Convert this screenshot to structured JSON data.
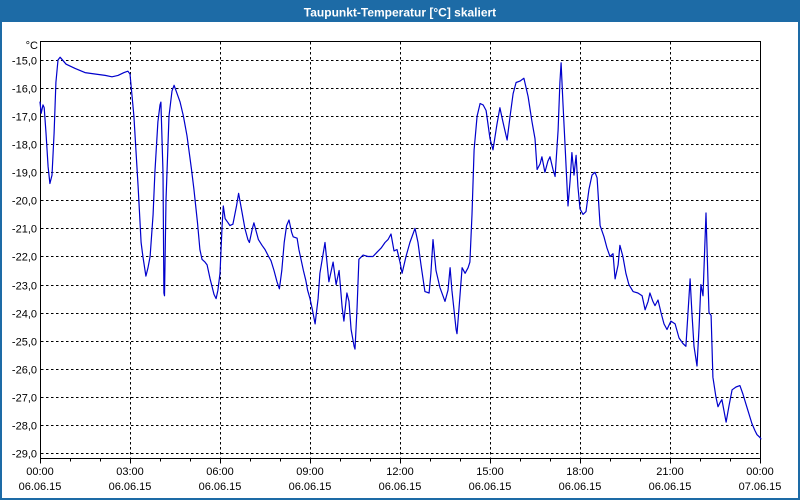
{
  "window": {
    "title": "Taupunkt-Temperatur [°C] skaliert"
  },
  "colors": {
    "titlebar_bg": "#1d6ba6",
    "titlebar_text": "#ffffff",
    "window_border": "#1d6ba6",
    "plot_bg": "#ffffff",
    "plot_border": "#000000",
    "gridline": "#000000",
    "label_text": "#000000",
    "series_line": "#0000cc"
  },
  "chart_data": {
    "type": "line",
    "title": "Taupunkt-Temperatur [°C] skaliert",
    "grid": "dashed",
    "legend": "none",
    "y_axis": {
      "unit_label": "°C",
      "decimal_style": "comma",
      "tick_values": [
        -15,
        -16,
        -17,
        -18,
        -19,
        -20,
        -21,
        -22,
        -23,
        -24,
        -25,
        -26,
        -27,
        -28,
        -29
      ],
      "tick_labels": [
        "-15,0",
        "-16,0",
        "-17,0",
        "-18,0",
        "-19,0",
        "-20,0",
        "-21,0",
        "-22,0",
        "-23,0",
        "-24,0",
        "-25,0",
        "-26,0",
        "-27,0",
        "-28,0",
        "-29,0"
      ],
      "min": -29.2,
      "max": -14.3
    },
    "x_axis": {
      "minor_tick_every_hours": 1,
      "major_ticks": [
        {
          "hour": 0,
          "time": "00:00",
          "date": "06.06.15"
        },
        {
          "hour": 3,
          "time": "03:00",
          "date": "06.06.15"
        },
        {
          "hour": 6,
          "time": "06:00",
          "date": "06.06.15"
        },
        {
          "hour": 9,
          "time": "09:00",
          "date": "06.06.15"
        },
        {
          "hour": 12,
          "time": "12:00",
          "date": "06.06.15"
        },
        {
          "hour": 15,
          "time": "15:00",
          "date": "06.06.15"
        },
        {
          "hour": 18,
          "time": "18:00",
          "date": "06.06.15"
        },
        {
          "hour": 21,
          "time": "21:00",
          "date": "06.06.15"
        },
        {
          "hour": 24,
          "time": "00:00",
          "date": "07.06.15"
        }
      ]
    },
    "series": [
      {
        "name": "Taupunkt-Temperatur",
        "color": "#0000cc",
        "x_unit": "hours_since_2015-06-06_00:00",
        "points": [
          [
            0,
            -16.5
          ],
          [
            0.04,
            -16.9
          ],
          [
            0.1,
            -16.6
          ],
          [
            0.14,
            -16.7
          ],
          [
            0.2,
            -17.6
          ],
          [
            0.27,
            -18.8
          ],
          [
            0.33,
            -19.4
          ],
          [
            0.4,
            -19.1
          ],
          [
            0.47,
            -17.6
          ],
          [
            0.53,
            -15.8
          ],
          [
            0.6,
            -15.0
          ],
          [
            0.67,
            -14.9
          ],
          [
            0.87,
            -15.15
          ],
          [
            1.17,
            -15.3
          ],
          [
            1.5,
            -15.45
          ],
          [
            1.83,
            -15.5
          ],
          [
            2.17,
            -15.55
          ],
          [
            2.4,
            -15.6
          ],
          [
            2.6,
            -15.55
          ],
          [
            2.8,
            -15.45
          ],
          [
            2.93,
            -15.4
          ],
          [
            3.0,
            -15.5
          ],
          [
            3.13,
            -17.0
          ],
          [
            3.27,
            -19.5
          ],
          [
            3.37,
            -21.5
          ],
          [
            3.43,
            -22.0
          ],
          [
            3.53,
            -22.7
          ],
          [
            3.6,
            -22.4
          ],
          [
            3.67,
            -22.0
          ],
          [
            3.77,
            -20.5
          ],
          [
            3.83,
            -19.0
          ],
          [
            3.93,
            -17.2
          ],
          [
            4.0,
            -16.6
          ],
          [
            4.03,
            -16.5
          ],
          [
            4.1,
            -19.0
          ],
          [
            4.13,
            -23.3
          ],
          [
            4.15,
            -23.4
          ],
          [
            4.2,
            -20.0
          ],
          [
            4.3,
            -17.0
          ],
          [
            4.4,
            -16.1
          ],
          [
            4.47,
            -15.9
          ],
          [
            4.57,
            -16.2
          ],
          [
            4.67,
            -16.5
          ],
          [
            4.78,
            -17.0
          ],
          [
            4.9,
            -17.7
          ],
          [
            5.0,
            -18.5
          ],
          [
            5.05,
            -18.9
          ],
          [
            5.13,
            -19.6
          ],
          [
            5.25,
            -20.8
          ],
          [
            5.33,
            -21.75
          ],
          [
            5.4,
            -22.1
          ],
          [
            5.5,
            -22.2
          ],
          [
            5.57,
            -22.3
          ],
          [
            5.67,
            -22.8
          ],
          [
            5.8,
            -23.35
          ],
          [
            5.87,
            -23.5
          ],
          [
            5.93,
            -23.2
          ],
          [
            6.0,
            -22.6
          ],
          [
            6.07,
            -20.9
          ],
          [
            6.11,
            -20.2
          ],
          [
            6.17,
            -20.65
          ],
          [
            6.27,
            -20.8
          ],
          [
            6.33,
            -20.9
          ],
          [
            6.43,
            -20.85
          ],
          [
            6.55,
            -20.2
          ],
          [
            6.62,
            -19.75
          ],
          [
            6.73,
            -20.4
          ],
          [
            6.83,
            -21.0
          ],
          [
            6.93,
            -21.4
          ],
          [
            6.98,
            -21.5
          ],
          [
            7.08,
            -21.0
          ],
          [
            7.13,
            -20.8
          ],
          [
            7.28,
            -21.4
          ],
          [
            7.4,
            -21.6
          ],
          [
            7.5,
            -21.75
          ],
          [
            7.62,
            -22.0
          ],
          [
            7.7,
            -22.15
          ],
          [
            7.8,
            -22.5
          ],
          [
            7.9,
            -22.9
          ],
          [
            7.98,
            -23.15
          ],
          [
            8.06,
            -22.5
          ],
          [
            8.14,
            -21.5
          ],
          [
            8.22,
            -20.9
          ],
          [
            8.3,
            -20.7
          ],
          [
            8.39,
            -21.15
          ],
          [
            8.44,
            -21.3
          ],
          [
            8.57,
            -21.35
          ],
          [
            8.63,
            -21.75
          ],
          [
            8.7,
            -22.1
          ],
          [
            8.78,
            -22.5
          ],
          [
            8.86,
            -22.85
          ],
          [
            8.92,
            -23.2
          ],
          [
            9.0,
            -23.5
          ],
          [
            9.08,
            -23.9
          ],
          [
            9.17,
            -24.4
          ],
          [
            9.27,
            -23.5
          ],
          [
            9.33,
            -22.6
          ],
          [
            9.5,
            -21.5
          ],
          [
            9.63,
            -22.9
          ],
          [
            9.77,
            -22.2
          ],
          [
            9.87,
            -23.0
          ],
          [
            9.97,
            -22.5
          ],
          [
            10.07,
            -23.8
          ],
          [
            10.13,
            -24.3
          ],
          [
            10.23,
            -23.3
          ],
          [
            10.3,
            -23.6
          ],
          [
            10.37,
            -24.6
          ],
          [
            10.47,
            -25.2
          ],
          [
            10.5,
            -25.3
          ],
          [
            10.57,
            -23.8
          ],
          [
            10.63,
            -22.1
          ],
          [
            10.77,
            -21.95
          ],
          [
            10.93,
            -22.0
          ],
          [
            11.1,
            -22.0
          ],
          [
            11.23,
            -21.85
          ],
          [
            11.37,
            -21.7
          ],
          [
            11.5,
            -21.5
          ],
          [
            11.6,
            -21.4
          ],
          [
            11.7,
            -21.2
          ],
          [
            11.8,
            -21.8
          ],
          [
            11.9,
            -21.75
          ],
          [
            12.0,
            -22.2
          ],
          [
            12.07,
            -22.6
          ],
          [
            12.2,
            -22.0
          ],
          [
            12.33,
            -21.5
          ],
          [
            12.5,
            -21.0
          ],
          [
            12.6,
            -21.5
          ],
          [
            12.7,
            -22.3
          ],
          [
            12.83,
            -23.25
          ],
          [
            12.97,
            -23.3
          ],
          [
            13.03,
            -22.6
          ],
          [
            13.1,
            -21.4
          ],
          [
            13.2,
            -22.5
          ],
          [
            13.33,
            -23.1
          ],
          [
            13.5,
            -23.6
          ],
          [
            13.6,
            -23.2
          ],
          [
            13.67,
            -22.4
          ],
          [
            13.73,
            -23.2
          ],
          [
            13.77,
            -23.6
          ],
          [
            13.87,
            -24.6
          ],
          [
            13.9,
            -24.75
          ],
          [
            13.97,
            -23.8
          ],
          [
            14.07,
            -22.4
          ],
          [
            14.17,
            -22.6
          ],
          [
            14.27,
            -22.4
          ],
          [
            14.33,
            -22.2
          ],
          [
            14.4,
            -20.5
          ],
          [
            14.47,
            -18.2
          ],
          [
            14.57,
            -17.0
          ],
          [
            14.67,
            -16.55
          ],
          [
            14.77,
            -16.6
          ],
          [
            14.87,
            -16.8
          ],
          [
            15.0,
            -17.8
          ],
          [
            15.1,
            -18.2
          ],
          [
            15.23,
            -17.3
          ],
          [
            15.33,
            -16.7
          ],
          [
            15.43,
            -17.2
          ],
          [
            15.57,
            -17.85
          ],
          [
            15.67,
            -17.0
          ],
          [
            15.77,
            -16.2
          ],
          [
            15.87,
            -15.8
          ],
          [
            16.0,
            -15.75
          ],
          [
            16.13,
            -15.65
          ],
          [
            16.27,
            -16.3
          ],
          [
            16.4,
            -17.2
          ],
          [
            16.5,
            -17.8
          ],
          [
            16.57,
            -18.9
          ],
          [
            16.67,
            -18.7
          ],
          [
            16.73,
            -18.45
          ],
          [
            16.83,
            -19.0
          ],
          [
            16.93,
            -18.6
          ],
          [
            17.0,
            -18.45
          ],
          [
            17.1,
            -18.9
          ],
          [
            17.17,
            -19.15
          ],
          [
            17.27,
            -17.5
          ],
          [
            17.33,
            -15.8
          ],
          [
            17.37,
            -15.1
          ],
          [
            17.43,
            -16.5
          ],
          [
            17.5,
            -18.0
          ],
          [
            17.6,
            -20.2
          ],
          [
            17.67,
            -19.3
          ],
          [
            17.73,
            -18.3
          ],
          [
            17.8,
            -19.1
          ],
          [
            17.87,
            -18.4
          ],
          [
            17.93,
            -19.5
          ],
          [
            18.0,
            -20.3
          ],
          [
            18.1,
            -20.5
          ],
          [
            18.2,
            -20.4
          ],
          [
            18.3,
            -19.6
          ],
          [
            18.4,
            -19.1
          ],
          [
            18.5,
            -19.0
          ],
          [
            18.57,
            -19.2
          ],
          [
            18.67,
            -20.9
          ],
          [
            18.8,
            -21.3
          ],
          [
            18.9,
            -21.7
          ],
          [
            19.0,
            -22.0
          ],
          [
            19.1,
            -21.9
          ],
          [
            19.17,
            -22.8
          ],
          [
            19.27,
            -22.3
          ],
          [
            19.33,
            -21.6
          ],
          [
            19.43,
            -22.0
          ],
          [
            19.53,
            -22.6
          ],
          [
            19.63,
            -23.0
          ],
          [
            19.77,
            -23.25
          ],
          [
            19.93,
            -23.3
          ],
          [
            20.07,
            -23.4
          ],
          [
            20.17,
            -23.9
          ],
          [
            20.27,
            -23.6
          ],
          [
            20.33,
            -23.3
          ],
          [
            20.43,
            -23.6
          ],
          [
            20.5,
            -23.75
          ],
          [
            20.6,
            -23.55
          ],
          [
            20.7,
            -24.0
          ],
          [
            20.8,
            -24.4
          ],
          [
            20.9,
            -24.6
          ],
          [
            21.03,
            -24.3
          ],
          [
            21.17,
            -24.4
          ],
          [
            21.3,
            -24.9
          ],
          [
            21.43,
            -25.1
          ],
          [
            21.53,
            -25.2
          ],
          [
            21.6,
            -24.0
          ],
          [
            21.67,
            -22.8
          ],
          [
            21.73,
            -24.0
          ],
          [
            21.8,
            -25.2
          ],
          [
            21.9,
            -25.9
          ],
          [
            21.97,
            -24.5
          ],
          [
            22.03,
            -23.0
          ],
          [
            22.1,
            -23.4
          ],
          [
            22.2,
            -20.45
          ],
          [
            22.27,
            -23.0
          ],
          [
            22.3,
            -24.0
          ],
          [
            22.37,
            -24.1
          ],
          [
            22.43,
            -26.3
          ],
          [
            22.53,
            -27.0
          ],
          [
            22.6,
            -27.35
          ],
          [
            22.67,
            -27.2
          ],
          [
            22.73,
            -27.1
          ],
          [
            22.8,
            -27.5
          ],
          [
            22.87,
            -27.9
          ],
          [
            22.97,
            -27.3
          ],
          [
            23.07,
            -26.75
          ],
          [
            23.2,
            -26.65
          ],
          [
            23.33,
            -26.6
          ],
          [
            23.43,
            -26.9
          ],
          [
            23.53,
            -27.25
          ],
          [
            23.63,
            -27.6
          ],
          [
            23.73,
            -27.95
          ],
          [
            23.83,
            -28.2
          ],
          [
            23.9,
            -28.35
          ],
          [
            24.0,
            -28.45
          ],
          [
            24.03,
            -28.5
          ]
        ]
      }
    ]
  }
}
